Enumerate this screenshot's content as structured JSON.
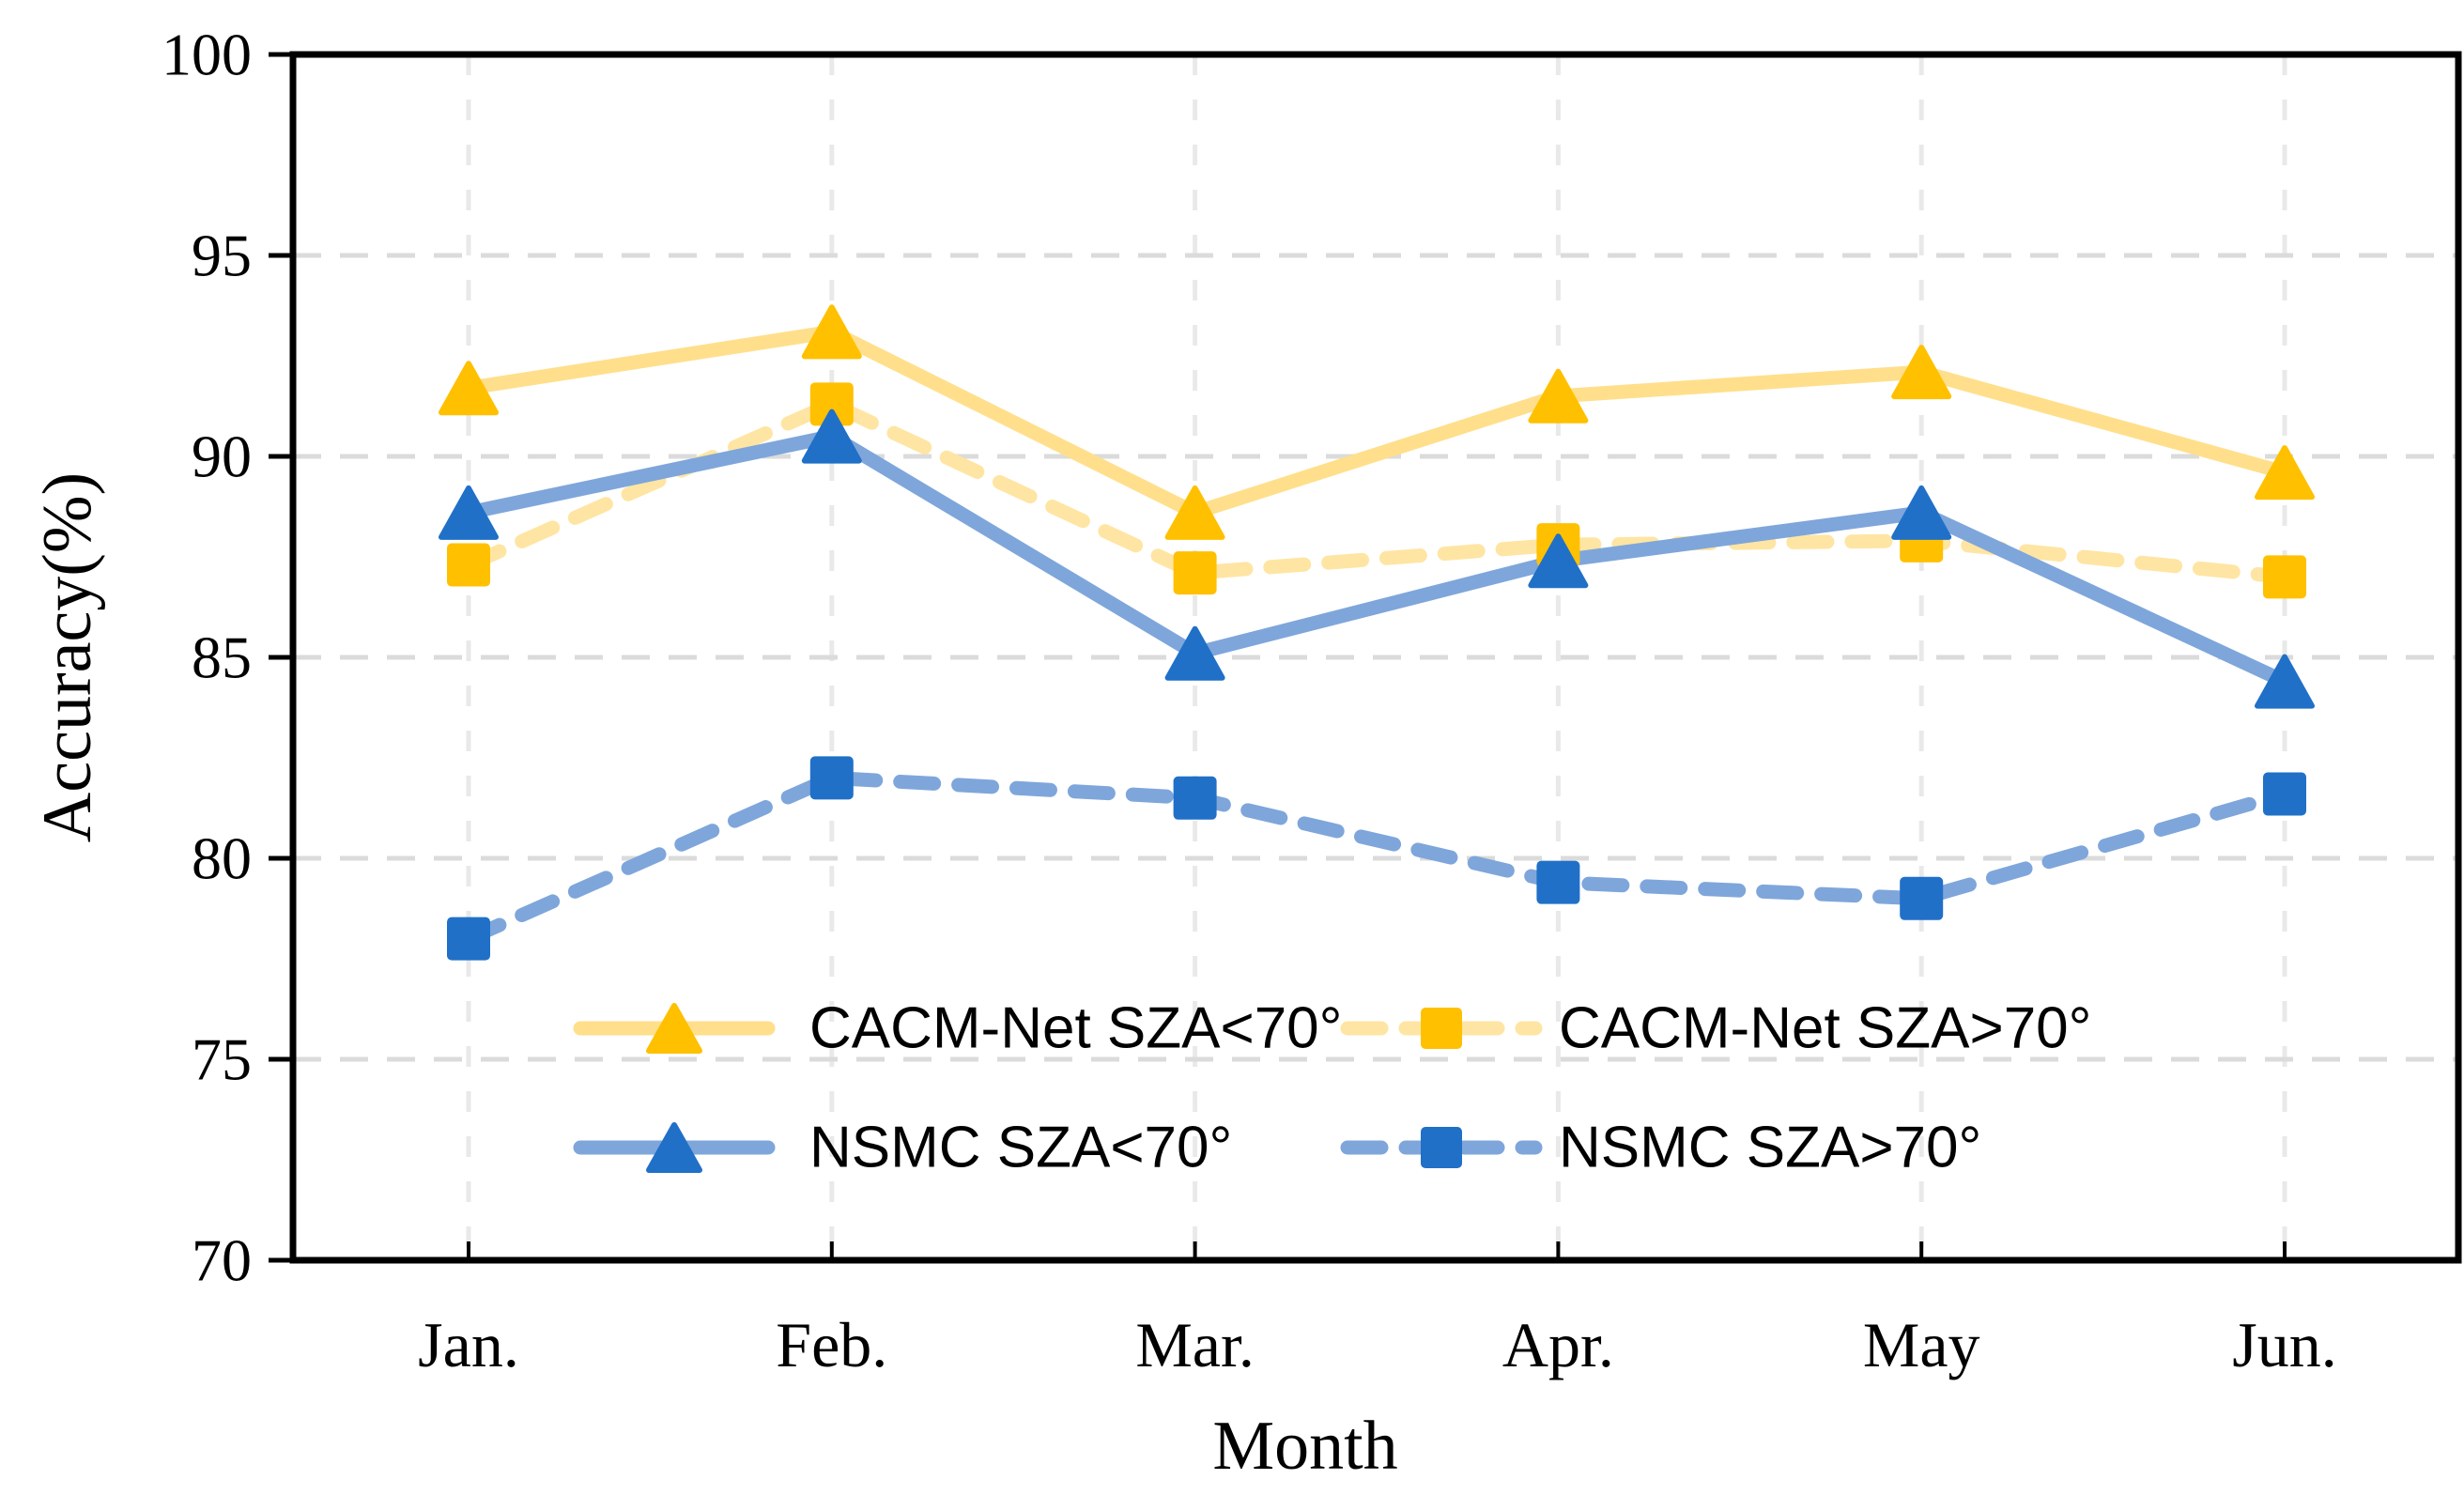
{
  "chart_data": {
    "type": "line",
    "title": "",
    "xlabel": "Month",
    "ylabel": "Accuracy(%)",
    "categories": [
      "Jan.",
      "Feb.",
      "Mar.",
      "Apr.",
      "May",
      "Jun."
    ],
    "ylim": [
      70,
      100
    ],
    "yticks": [
      100,
      95,
      90,
      85,
      80,
      75,
      70
    ],
    "grid": {
      "horizontal": "dashed",
      "vertical": "dashed",
      "h_color": "#DBDBDB",
      "v_color": "#E9E9E9"
    },
    "legend_position": "inside-bottom-center, 2 columns x 2 rows, no border",
    "axis_color": "#000000",
    "series": [
      {
        "name": "CACM-Net  SZA<70°",
        "values": [
          91.7,
          93.1,
          88.6,
          91.5,
          92.1,
          89.6
        ],
        "line_style": "solid",
        "marker": "triangle",
        "line_color": "#FFDF8B",
        "marker_color": "#FFC000"
      },
      {
        "name": "CACM-Net  SZA>70°",
        "values": [
          87.3,
          91.3,
          87.1,
          87.8,
          87.9,
          87.0
        ],
        "line_style": "dashed",
        "marker": "square",
        "line_color": "#FFE5A3",
        "marker_color": "#FFC000"
      },
      {
        "name": "NSMC SZA<70°",
        "values": [
          88.6,
          90.5,
          85.1,
          87.4,
          88.6,
          84.4
        ],
        "line_style": "solid",
        "marker": "triangle",
        "line_color": "#7EA6DB",
        "marker_color": "#2070C8"
      },
      {
        "name": "NSMC SZA>70°",
        "values": [
          78.0,
          82.0,
          81.5,
          79.4,
          79.0,
          81.6
        ],
        "line_style": "dashed",
        "marker": "square",
        "line_color": "#7EA6DB",
        "marker_color": "#2070C8"
      }
    ]
  }
}
